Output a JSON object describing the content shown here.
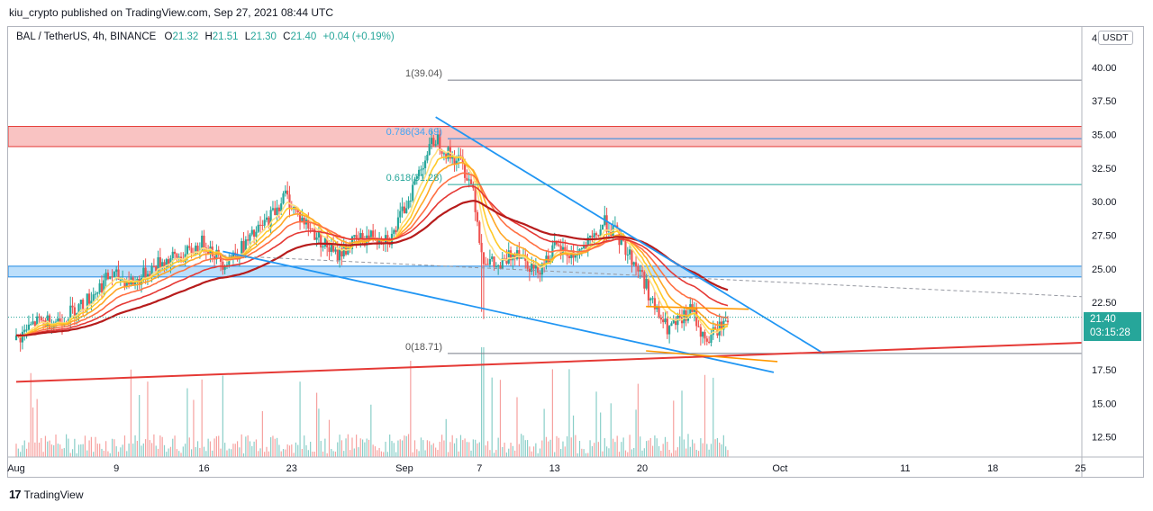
{
  "header": {
    "published": "kiu_crypto published on TradingView.com, Sep 27, 2021 08:44 UTC"
  },
  "legend": {
    "symbol": "BAL / TetherUS, 4h, BINANCE",
    "o_label": "O",
    "o": "21.32",
    "h_label": "H",
    "h": "21.51",
    "l_label": "L",
    "l": "21.30",
    "c_label": "C",
    "c": "21.40",
    "change": "+0.04 (+0.19%)"
  },
  "currency_badge": "USDT",
  "axis_top_label": "4",
  "last_price": {
    "price": "21.40",
    "countdown": "03:15:28"
  },
  "footer": {
    "logo": "17",
    "brand": "TradingView"
  },
  "colors": {
    "up": "#26a69a",
    "down": "#ef5350",
    "channel": "#2196f3",
    "support": "#e53935",
    "orange": "#ff9800",
    "fib": "#787b86",
    "fib_label": "#42a5f5"
  },
  "chart_data": {
    "type": "candlestick",
    "title": "BAL / TetherUS, 4h, BINANCE",
    "ylim": [
      11.0,
      43.0
    ],
    "y_ticks": [
      12.5,
      15.0,
      17.5,
      20.0,
      22.5,
      25.0,
      27.5,
      30.0,
      32.5,
      35.0,
      37.5,
      40.0
    ],
    "y_tick_labels": [
      "12.50",
      "15.00",
      "17.50",
      "",
      "22.50",
      "25.00",
      "27.50",
      "30.00",
      "32.50",
      "35.00",
      "37.50",
      "40.00"
    ],
    "x_ticks": [
      {
        "label": "Aug",
        "day": 0
      },
      {
        "label": "9",
        "day": 8
      },
      {
        "label": "16",
        "day": 15
      },
      {
        "label": "23",
        "day": 22
      },
      {
        "label": "Sep",
        "day": 31
      },
      {
        "label": "7",
        "day": 37
      },
      {
        "label": "13",
        "day": 43
      },
      {
        "label": "20",
        "day": 50
      },
      {
        "label": "Oct",
        "day": 61
      },
      {
        "label": "11",
        "day": 71
      },
      {
        "label": "18",
        "day": 78
      },
      {
        "label": "25",
        "day": 85
      }
    ],
    "price_path": [
      [
        0,
        19.7
      ],
      [
        1.5,
        21.0
      ],
      [
        3.5,
        21.2
      ],
      [
        5.5,
        22.5
      ],
      [
        7.5,
        24.5
      ],
      [
        9.5,
        24.0
      ],
      [
        11.5,
        25.5
      ],
      [
        13.5,
        26.0
      ],
      [
        15,
        27.0
      ],
      [
        16.5,
        25.5
      ],
      [
        18,
        26.5
      ],
      [
        20,
        28.5
      ],
      [
        21.5,
        30.5
      ],
      [
        22.5,
        29.0
      ],
      [
        24,
        27.5
      ],
      [
        25.5,
        26.0
      ],
      [
        27,
        27.0
      ],
      [
        28.5,
        27.5
      ],
      [
        30,
        27.3
      ],
      [
        31,
        29.5
      ],
      [
        32.5,
        33.0
      ],
      [
        33.5,
        34.8
      ],
      [
        34.5,
        33.5
      ],
      [
        35.5,
        33.0
      ],
      [
        36.5,
        31.0
      ],
      [
        37.2,
        26.0
      ],
      [
        38.5,
        25.0
      ],
      [
        40,
        26.5
      ],
      [
        41.5,
        24.8
      ],
      [
        43,
        26.5
      ],
      [
        44.5,
        26.0
      ],
      [
        46,
        27.0
      ],
      [
        47,
        28.5
      ],
      [
        48,
        27.5
      ],
      [
        49,
        26.0
      ],
      [
        50,
        24.5
      ],
      [
        51,
        22.0
      ],
      [
        52,
        20.5
      ],
      [
        53,
        21.0
      ],
      [
        54,
        22.0
      ],
      [
        55,
        19.5
      ],
      [
        56,
        20.5
      ],
      [
        57,
        21.4
      ]
    ],
    "ema_ribbon_lengths": [
      8,
      13,
      21,
      34,
      55,
      89
    ],
    "fib_levels": [
      {
        "ratio": "1",
        "price": 39.04,
        "label": "1(39.04)"
      },
      {
        "ratio": "0.786",
        "price": 34.69,
        "label": "0.786(34.69)"
      },
      {
        "ratio": "0.618",
        "price": 31.28,
        "label": "0.618(31.28)"
      },
      {
        "ratio": "0",
        "price": 18.71,
        "label": "0(18.71)"
      }
    ],
    "zones": [
      {
        "name": "resistance-zone",
        "top": 35.6,
        "bottom": 34.1
      },
      {
        "name": "support-zone",
        "top": 25.2,
        "bottom": 24.4
      }
    ],
    "trendlines": [
      {
        "name": "channel-upper",
        "from": [
          33.5,
          36.3
        ],
        "to": [
          64.5,
          18.7
        ]
      },
      {
        "name": "channel-lower",
        "from": [
          16.5,
          26.3
        ],
        "to": [
          60.5,
          17.3
        ]
      },
      {
        "name": "long-support",
        "from": [
          0,
          16.6
        ],
        "to": [
          88,
          19.6
        ]
      },
      {
        "name": "dashed-projection",
        "from": [
          16.5,
          26.0
        ],
        "to": [
          88,
          22.8
        ]
      },
      {
        "name": "orange-upper",
        "from": [
          50.3,
          22.2
        ],
        "to": [
          58.5,
          22.0
        ]
      },
      {
        "name": "orange-lower",
        "from": [
          50.3,
          18.9
        ],
        "to": [
          60.8,
          18.1
        ]
      }
    ],
    "volume": {
      "max_ratio": 0.25
    }
  }
}
